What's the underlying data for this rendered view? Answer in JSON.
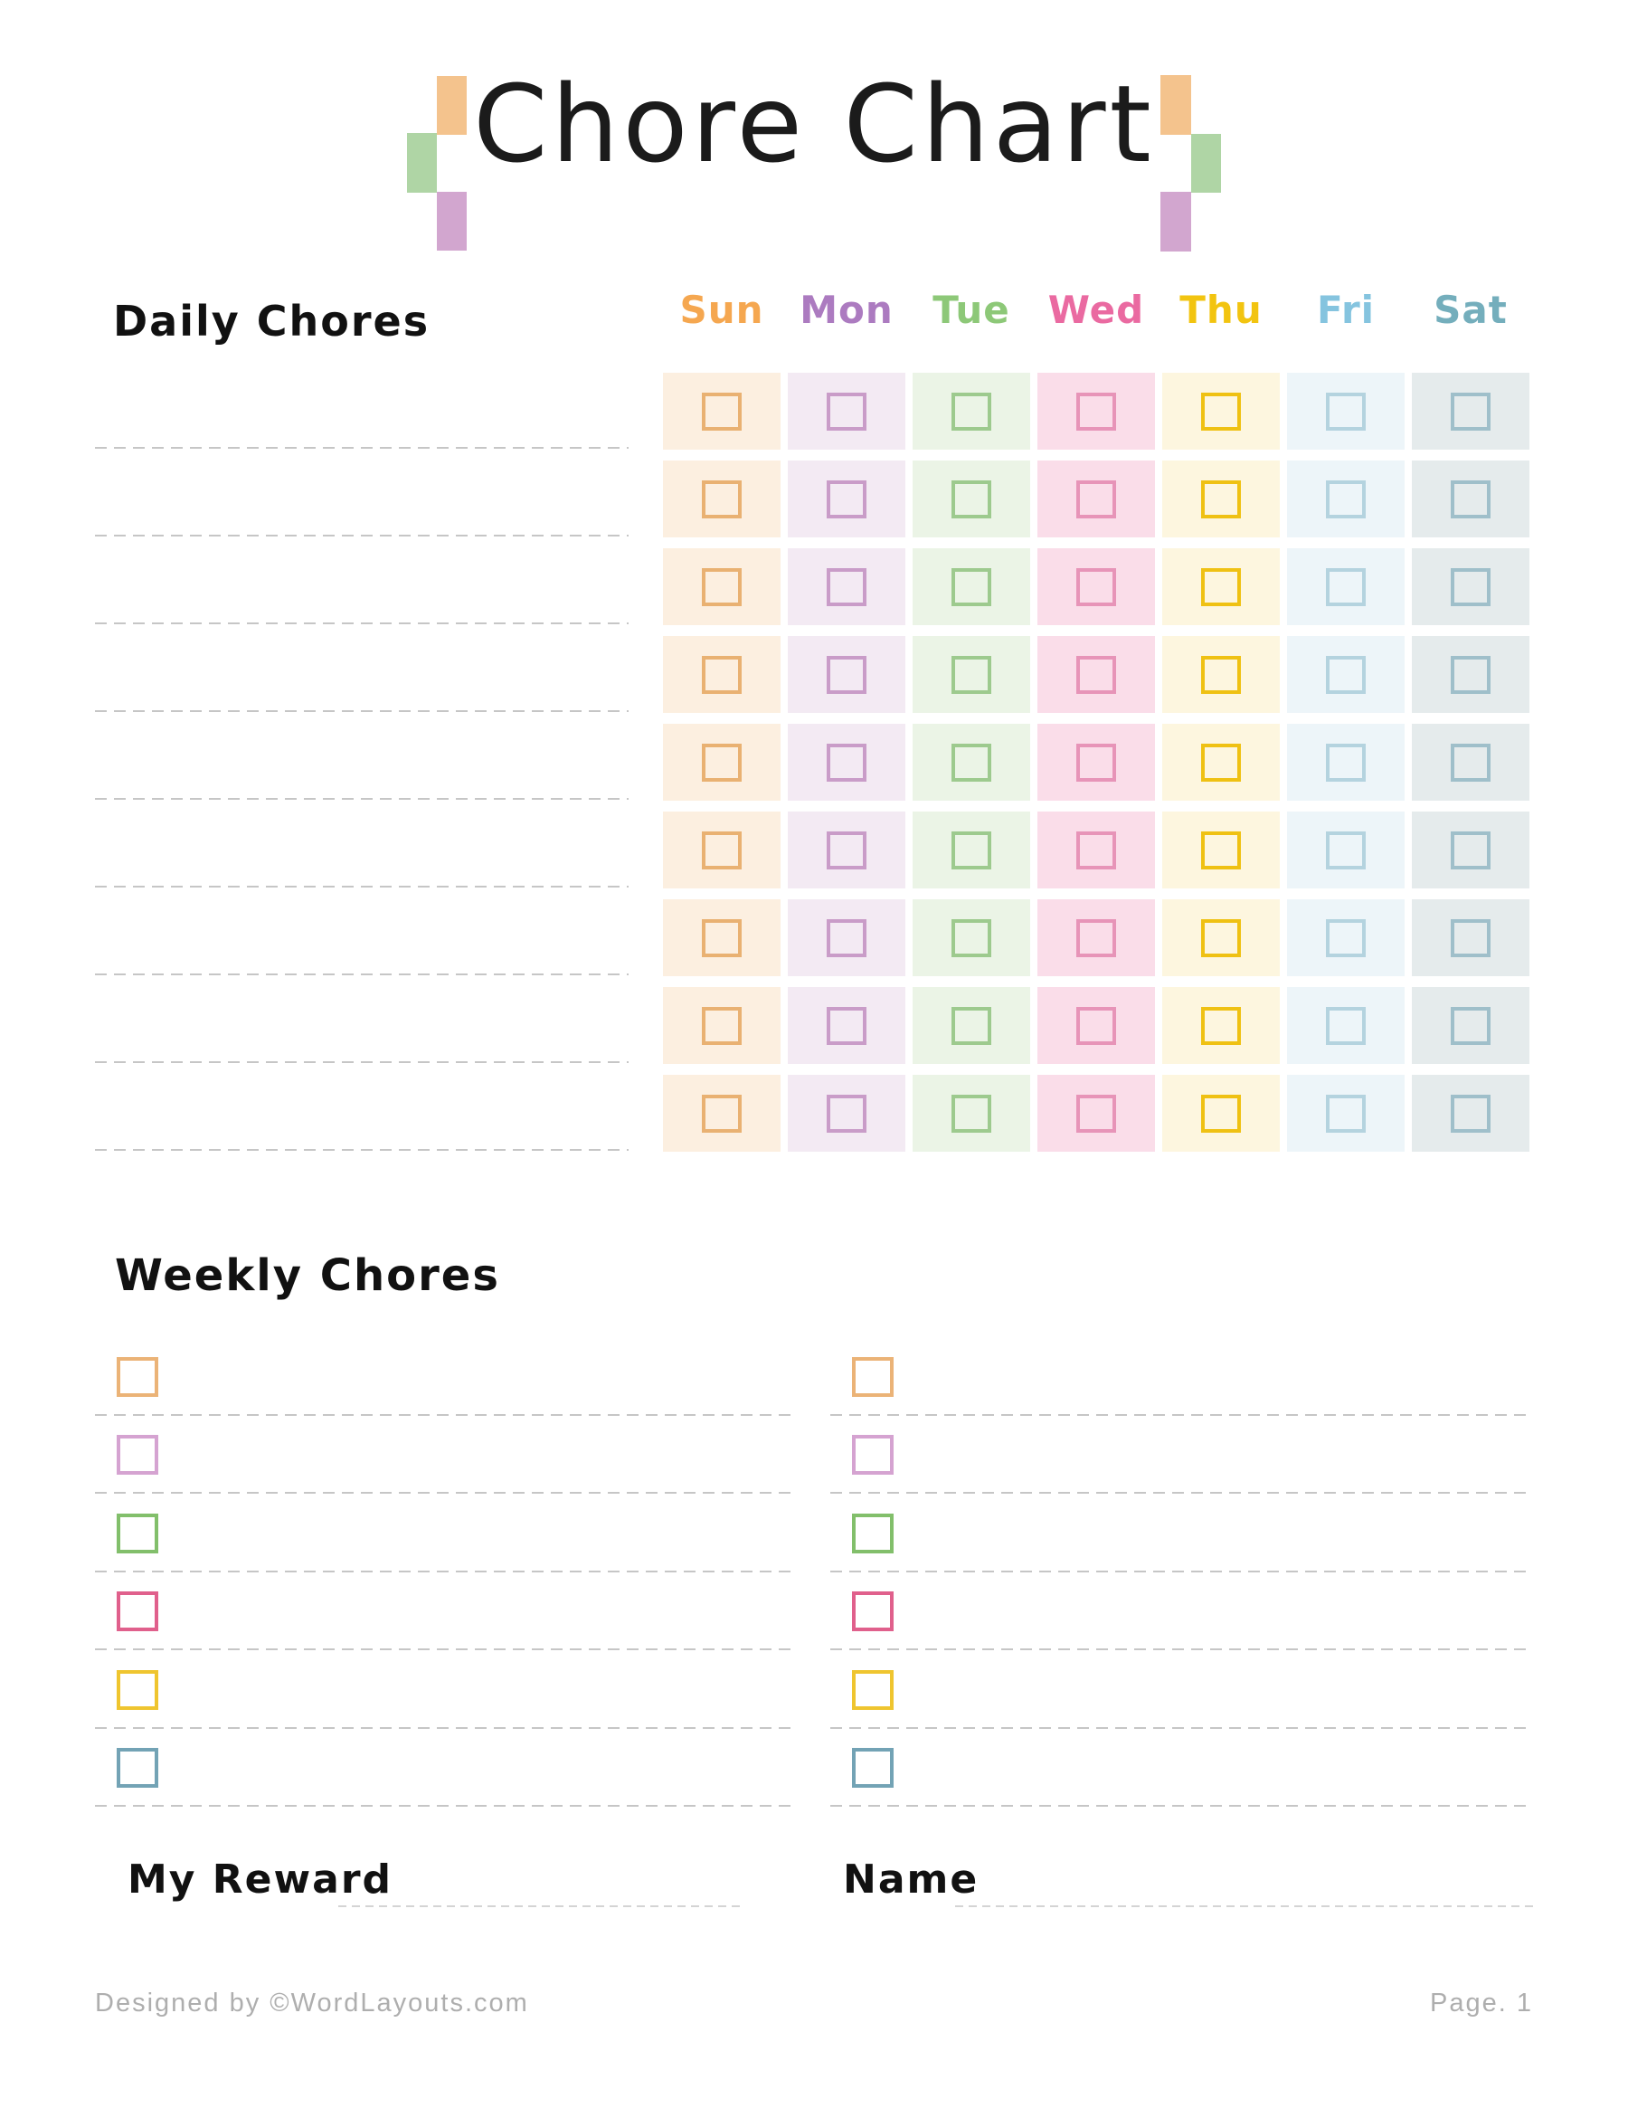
{
  "page": {
    "title": "Chore Chart"
  },
  "decor": {
    "orange": "#F4C38D",
    "green": "#AFD5A5",
    "purple": "#D2A6CF"
  },
  "daily": {
    "heading": "Daily Chores",
    "rows": 9,
    "days": [
      {
        "label": "Sun",
        "label_color": "#F5A750",
        "cell_bg": "#FCEFE0",
        "box_border": "#E9B172"
      },
      {
        "label": "Mon",
        "label_color": "#AC7BC0",
        "cell_bg": "#F3EAF3",
        "box_border": "#C99CC8"
      },
      {
        "label": "Tue",
        "label_color": "#8DC878",
        "cell_bg": "#EBF4E6",
        "box_border": "#9DCA8E"
      },
      {
        "label": "Wed",
        "label_color": "#EA6AA1",
        "cell_bg": "#FADDE9",
        "box_border": "#E794B8"
      },
      {
        "label": "Thu",
        "label_color": "#F2C410",
        "cell_bg": "#FDF6DF",
        "box_border": "#EFC113"
      },
      {
        "label": "Fri",
        "label_color": "#85C4DF",
        "cell_bg": "#EDF5F9",
        "box_border": "#B4D3DF"
      },
      {
        "label": "Sat",
        "label_color": "#74AEBC",
        "cell_bg": "#E5EBEC",
        "box_border": "#9FBFCA"
      }
    ]
  },
  "weekly": {
    "heading": "Weekly Chores",
    "columns": 2,
    "rows_per_column": 6,
    "checkbox_colors": [
      "#EBB377",
      "#D5A3D1",
      "#82BF6B",
      "#E0608C",
      "#EFC52F",
      "#73A3B5"
    ]
  },
  "fields": {
    "reward_label": "My Reward",
    "name_label": "Name"
  },
  "footer": {
    "credit": "Designed by ©WordLayouts.com",
    "page": "Page. 1"
  }
}
